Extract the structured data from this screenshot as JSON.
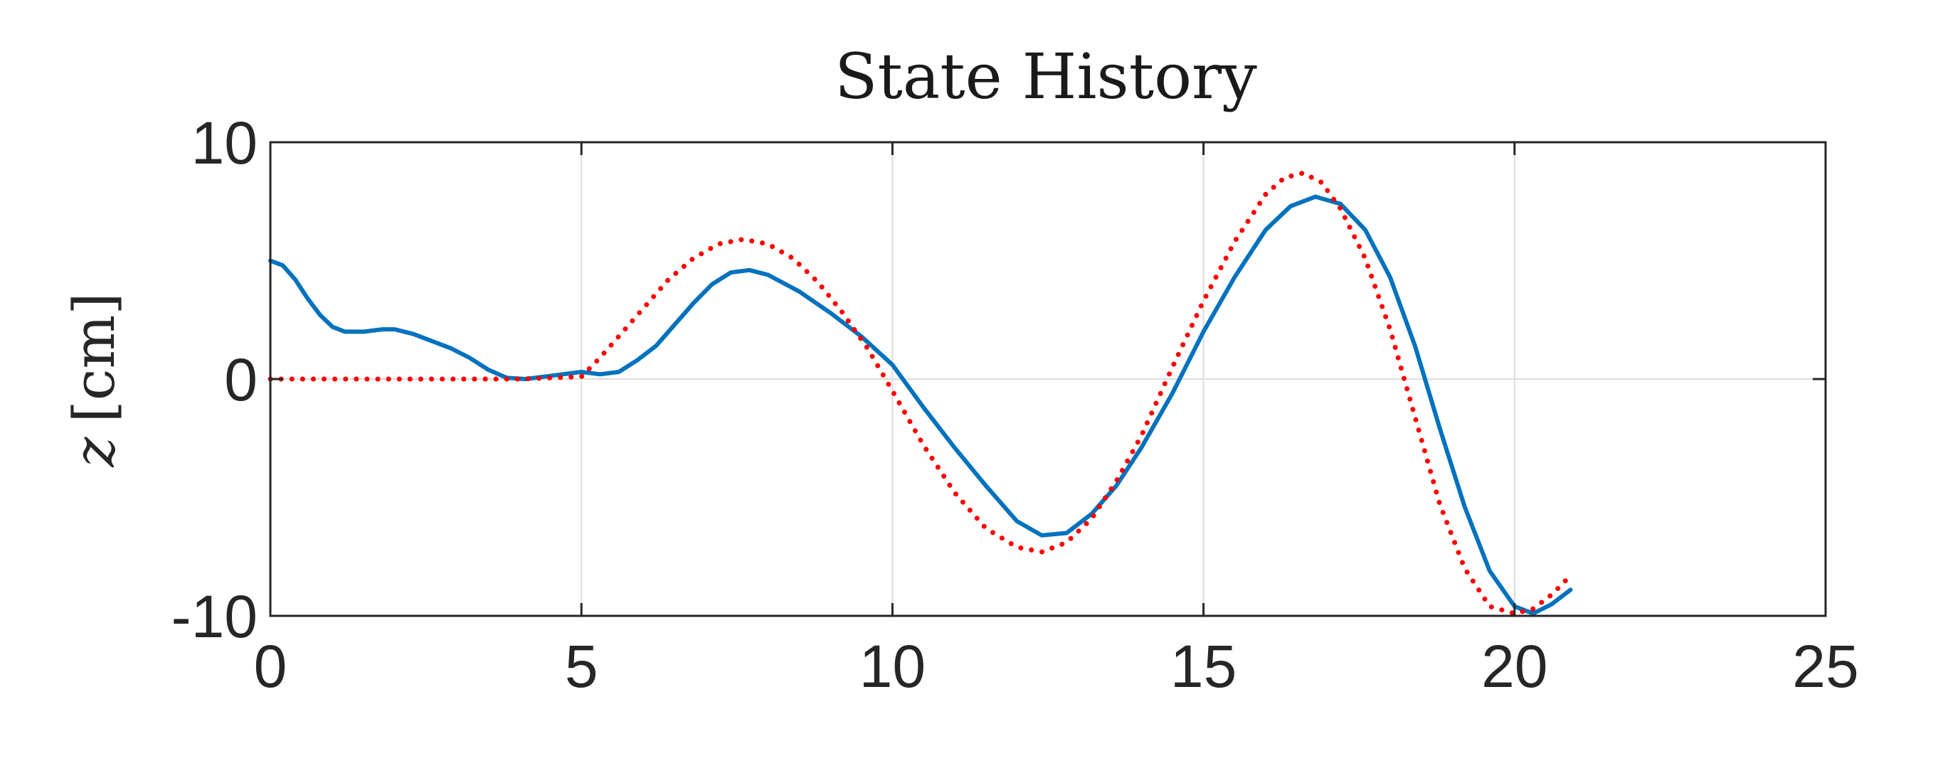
{
  "chart_data": {
    "type": "line",
    "title": "State History",
    "xlabel": "",
    "ylabel": "[cm]",
    "ylabel_var": "z",
    "xlim": [
      0,
      25
    ],
    "ylim": [
      -10,
      10
    ],
    "x_ticks": [
      0,
      5,
      10,
      15,
      20,
      25
    ],
    "y_ticks": [
      -10,
      0,
      10
    ],
    "x_tick_labels": [
      "0",
      "5",
      "10",
      "15",
      "20",
      "25"
    ],
    "y_tick_labels": [
      "-10",
      "0",
      "10"
    ],
    "grid": true,
    "legend": "none",
    "series": [
      {
        "style": "solid",
        "color": "#0072BD",
        "x": [
          0,
          0.2,
          0.4,
          0.6,
          0.8,
          1.0,
          1.2,
          1.5,
          1.8,
          2.0,
          2.3,
          2.6,
          2.9,
          3.2,
          3.5,
          3.8,
          4.1,
          4.4,
          4.7,
          5.0,
          5.3,
          5.6,
          5.9,
          6.2,
          6.5,
          6.8,
          7.1,
          7.4,
          7.7,
          8.0,
          8.5,
          9.0,
          9.5,
          10.0,
          10.5,
          11.0,
          11.5,
          12.0,
          12.4,
          12.8,
          13.2,
          13.6,
          14.0,
          14.5,
          15.0,
          15.5,
          16.0,
          16.4,
          16.8,
          17.2,
          17.6,
          18.0,
          18.4,
          18.8,
          19.2,
          19.6,
          20.0,
          20.3,
          20.6,
          20.9
        ],
        "y": [
          5.0,
          4.8,
          4.2,
          3.4,
          2.7,
          2.2,
          2.0,
          2.0,
          2.1,
          2.1,
          1.9,
          1.6,
          1.3,
          0.9,
          0.4,
          0.05,
          0.0,
          0.1,
          0.2,
          0.3,
          0.2,
          0.3,
          0.8,
          1.4,
          2.3,
          3.2,
          4.0,
          4.5,
          4.6,
          4.4,
          3.7,
          2.8,
          1.8,
          0.6,
          -1.2,
          -2.9,
          -4.5,
          -6.0,
          -6.6,
          -6.5,
          -5.7,
          -4.5,
          -2.9,
          -0.6,
          2.0,
          4.3,
          6.3,
          7.3,
          7.7,
          7.4,
          6.3,
          4.3,
          1.4,
          -2.1,
          -5.4,
          -8.1,
          -9.6,
          -9.9,
          -9.5,
          -8.9
        ]
      },
      {
        "style": "dotted",
        "color": "#FF0000",
        "x": [
          0,
          1,
          2,
          3,
          4,
          5,
          5.3,
          5.6,
          6.0,
          6.4,
          6.8,
          7.2,
          7.6,
          8.0,
          8.4,
          8.8,
          9.2,
          9.6,
          10.0,
          10.5,
          11.0,
          11.5,
          12.0,
          12.4,
          12.8,
          13.2,
          13.6,
          14.0,
          14.5,
          15.0,
          15.5,
          16.0,
          16.3,
          16.6,
          16.9,
          17.2,
          17.6,
          18.0,
          18.4,
          18.8,
          19.2,
          19.6,
          20.0,
          20.3,
          20.6,
          20.9
        ],
        "y": [
          0,
          0,
          0,
          0,
          0,
          0.1,
          0.9,
          1.8,
          3.0,
          4.2,
          5.1,
          5.7,
          5.9,
          5.7,
          5.1,
          4.1,
          2.8,
          1.3,
          -0.5,
          -2.8,
          -4.8,
          -6.3,
          -7.1,
          -7.3,
          -6.9,
          -5.9,
          -4.3,
          -2.4,
          0.5,
          3.3,
          5.8,
          7.8,
          8.5,
          8.7,
          8.3,
          7.2,
          5.1,
          2.1,
          -1.6,
          -5.3,
          -8.0,
          -9.6,
          -9.9,
          -9.7,
          -9.1,
          -8.3
        ]
      }
    ]
  }
}
